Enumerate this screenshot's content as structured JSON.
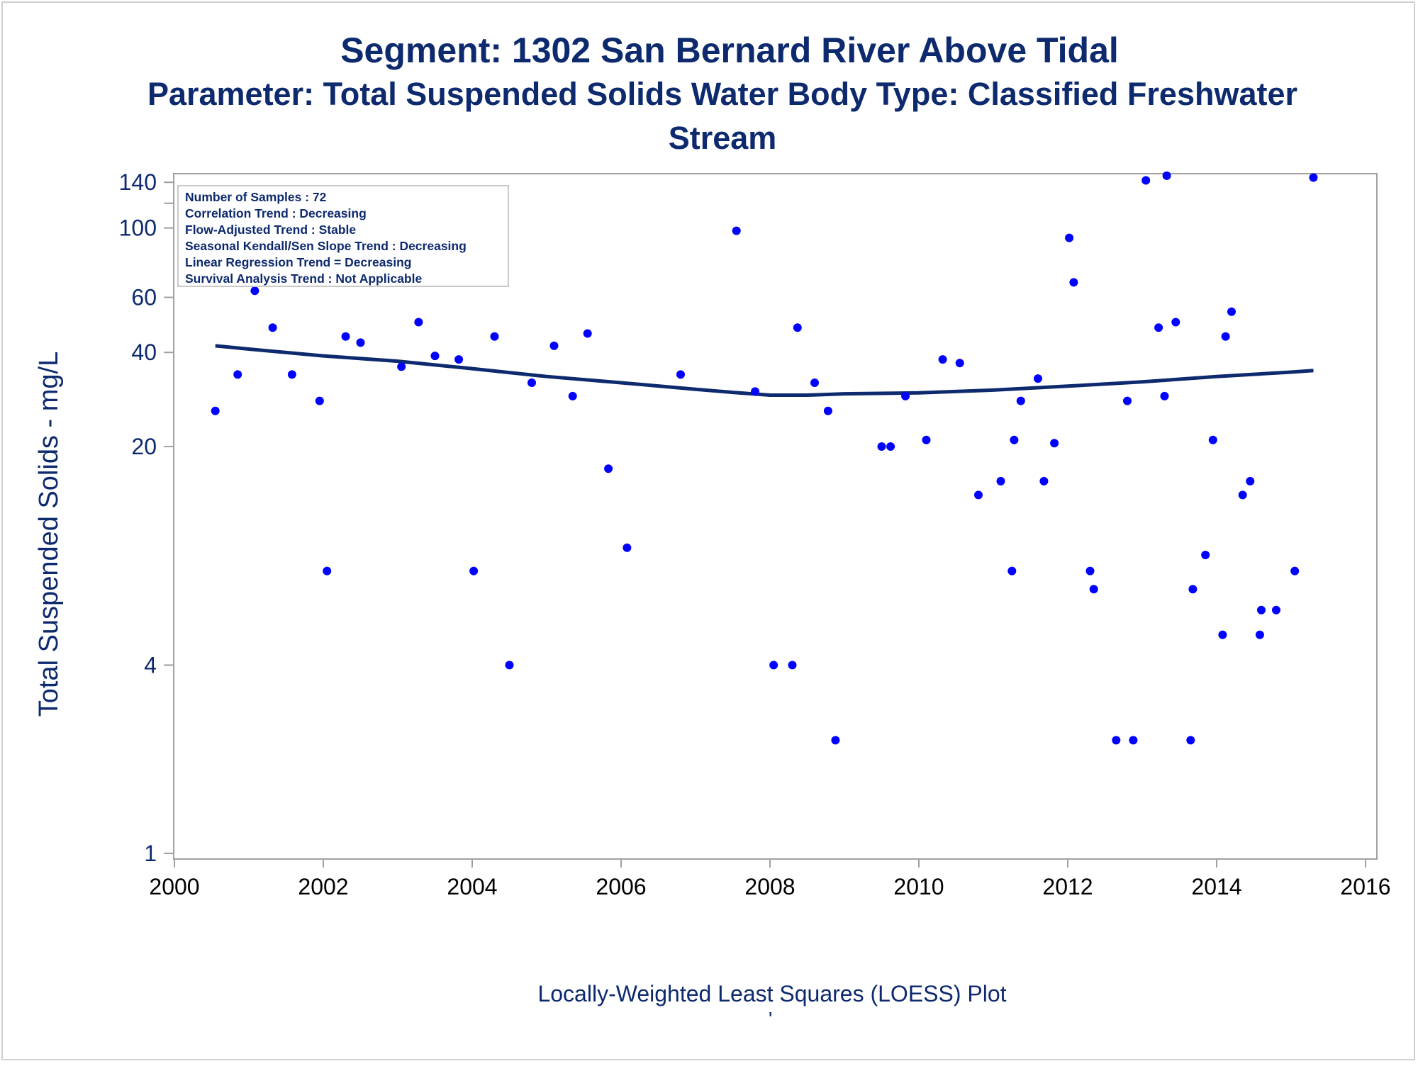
{
  "titles": {
    "line1": "Segment: 1302  San Bernard River Above Tidal",
    "line2": "Parameter: Total Suspended Solids   Water Body Type: Classified Freshwater",
    "line3": "Stream"
  },
  "stats_box": [
    "Number of Samples : 72",
    "Correlation Trend : Decreasing",
    "Flow-Adjusted Trend : Stable",
    "Seasonal Kendall/Sen Slope Trend : Decreasing",
    "Linear Regression Trend = Decreasing",
    "Survival Analysis Trend : Not Applicable"
  ],
  "footnote": "Locally-Weighted Least Squares (LOESS) Plot",
  "footnote_mark": "'",
  "colors": {
    "points": "#0000ff",
    "loess_line": "#0e2a6e",
    "text": "#0e2a6e",
    "axis": "#a0a0a0"
  },
  "chart_data": {
    "type": "scatter",
    "xlabel": "",
    "ylabel": "Total Suspended Solids - mg/L",
    "x_scale": "linear (years)",
    "y_scale": "log",
    "xlim": [
      2000,
      2016
    ],
    "ylim": [
      1,
      150
    ],
    "x_ticks": [
      2000,
      2002,
      2004,
      2006,
      2008,
      2010,
      2012,
      2014,
      2016
    ],
    "y_ticks": [
      1,
      4,
      20,
      40,
      60,
      100,
      140
    ],
    "y_minor_ticks": [
      120
    ],
    "grid": false,
    "legend": "stats box at top-left inside plot",
    "series": [
      {
        "type": "scatter",
        "points": [
          [
            2000.55,
            26
          ],
          [
            2000.85,
            34
          ],
          [
            2001.08,
            63
          ],
          [
            2001.32,
            48
          ],
          [
            2001.58,
            34
          ],
          [
            2001.95,
            28
          ],
          [
            2002.05,
            8
          ],
          [
            2002.3,
            45
          ],
          [
            2002.5,
            43
          ],
          [
            2002.8,
            110
          ],
          [
            2003.05,
            36
          ],
          [
            2003.28,
            50
          ],
          [
            2003.5,
            39
          ],
          [
            2003.82,
            38
          ],
          [
            2004.02,
            8
          ],
          [
            2004.3,
            45
          ],
          [
            2004.5,
            4
          ],
          [
            2004.8,
            32
          ],
          [
            2005.1,
            42
          ],
          [
            2005.35,
            29
          ],
          [
            2005.55,
            46
          ],
          [
            2005.83,
            17
          ],
          [
            2006.08,
            9.5
          ],
          [
            2006.8,
            34
          ],
          [
            2007.55,
            98
          ],
          [
            2007.8,
            30
          ],
          [
            2008.05,
            4
          ],
          [
            2008.3,
            4
          ],
          [
            2008.37,
            48
          ],
          [
            2008.6,
            32
          ],
          [
            2008.78,
            26
          ],
          [
            2008.88,
            2.3
          ],
          [
            2009.5,
            20
          ],
          [
            2009.62,
            20
          ],
          [
            2009.82,
            29
          ],
          [
            2010.1,
            21
          ],
          [
            2010.32,
            38
          ],
          [
            2010.55,
            37
          ],
          [
            2010.8,
            14
          ],
          [
            2011.1,
            15.5
          ],
          [
            2011.25,
            8
          ],
          [
            2011.28,
            21
          ],
          [
            2011.37,
            28
          ],
          [
            2011.6,
            33
          ],
          [
            2011.68,
            15.5
          ],
          [
            2011.82,
            20.5
          ],
          [
            2012.02,
            93
          ],
          [
            2012.08,
            67
          ],
          [
            2012.3,
            8
          ],
          [
            2012.35,
            7
          ],
          [
            2012.65,
            2.3
          ],
          [
            2012.8,
            28
          ],
          [
            2012.88,
            2.3
          ],
          [
            2013.05,
            142
          ],
          [
            2013.22,
            48
          ],
          [
            2013.3,
            29
          ],
          [
            2013.33,
            147
          ],
          [
            2013.45,
            50
          ],
          [
            2013.65,
            2.3
          ],
          [
            2013.68,
            7
          ],
          [
            2013.85,
            9
          ],
          [
            2013.95,
            21
          ],
          [
            2014.08,
            5
          ],
          [
            2014.12,
            45
          ],
          [
            2014.2,
            54
          ],
          [
            2014.35,
            14
          ],
          [
            2014.45,
            15.5
          ],
          [
            2014.58,
            5
          ],
          [
            2014.6,
            6
          ],
          [
            2014.8,
            6
          ],
          [
            2015.05,
            8
          ],
          [
            2015.3,
            145
          ]
        ]
      },
      {
        "type": "line",
        "name": "LOESS",
        "points": [
          [
            2000.55,
            42
          ],
          [
            2001.0,
            41
          ],
          [
            2002.0,
            39
          ],
          [
            2003.0,
            37.5
          ],
          [
            2004.0,
            35.5
          ],
          [
            2005.0,
            33.5
          ],
          [
            2006.0,
            32
          ],
          [
            2007.0,
            30.5
          ],
          [
            2007.5,
            29.8
          ],
          [
            2008.0,
            29.2
          ],
          [
            2008.5,
            29.2
          ],
          [
            2009.0,
            29.5
          ],
          [
            2010.0,
            29.7
          ],
          [
            2011.0,
            30.3
          ],
          [
            2012.0,
            31.2
          ],
          [
            2013.0,
            32.2
          ],
          [
            2014.0,
            33.5
          ],
          [
            2015.0,
            34.6
          ],
          [
            2015.3,
            35
          ]
        ]
      }
    ]
  }
}
